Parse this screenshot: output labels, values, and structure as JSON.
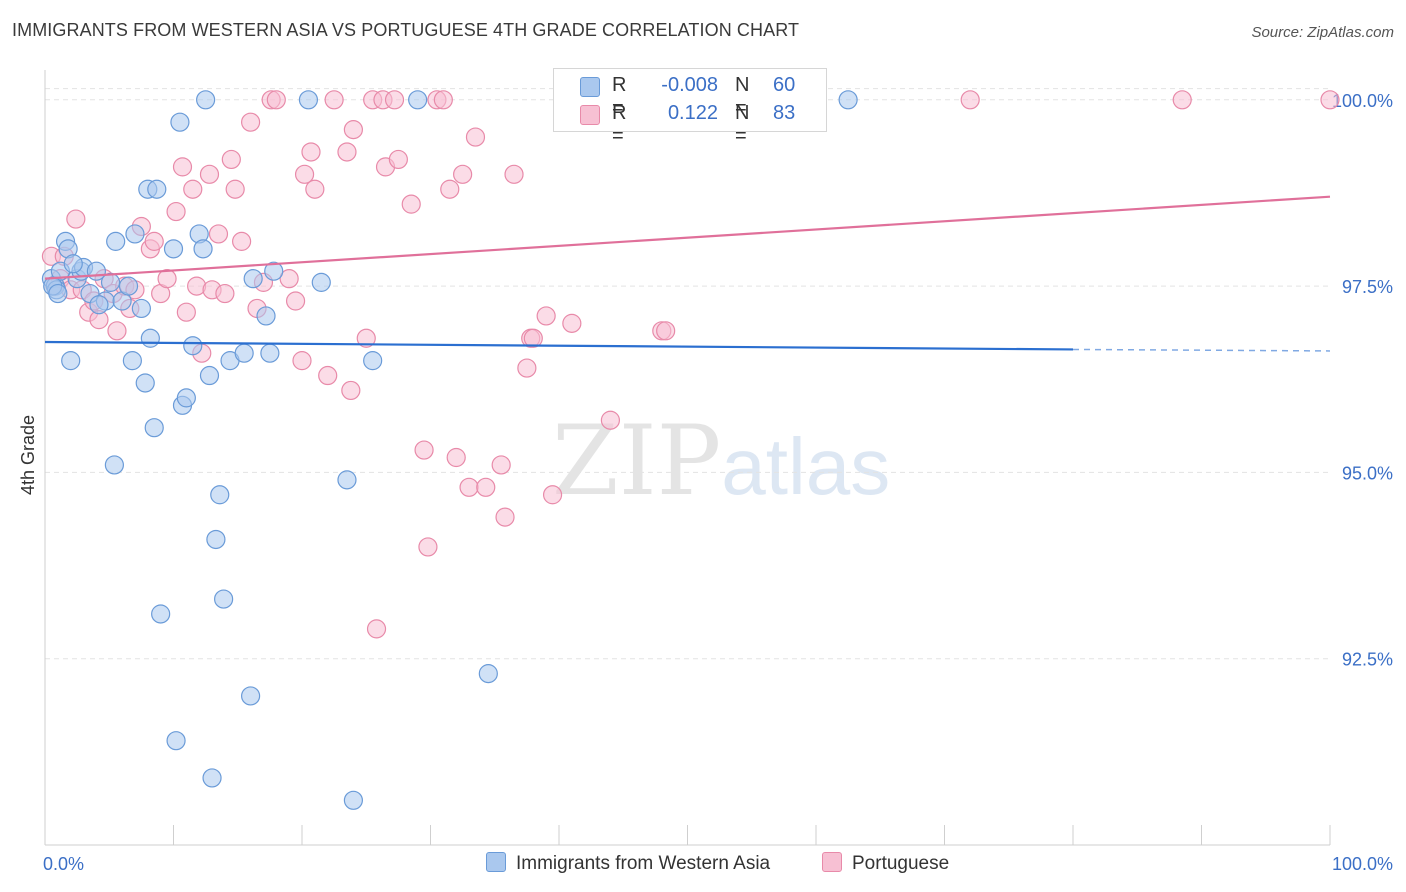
{
  "title": "IMMIGRANTS FROM WESTERN ASIA VS PORTUGUESE 4TH GRADE CORRELATION CHART",
  "source": "Source: ZipAtlas.com",
  "watermark": {
    "zip": "ZIP",
    "atlas": "atlas"
  },
  "legend_box": {
    "rows": [
      {
        "r_label": "R =",
        "r_value": "-0.008",
        "n_label": "N =",
        "n_value": "60"
      },
      {
        "r_label": "R =",
        "r_value": "0.122",
        "n_label": "N =",
        "n_value": "83"
      }
    ]
  },
  "bottom_legend": [
    "Immigrants from Western Asia",
    "Portuguese"
  ],
  "colors": {
    "blue_fill": "#aac8ee",
    "blue_stroke": "#6a9bd8",
    "blue_line": "#2b6fd0",
    "pink_fill": "#f7c0d3",
    "pink_stroke": "#e88aa9",
    "pink_line": "#e0709a",
    "tick_label": "#3b6fc6"
  },
  "chart_data": {
    "type": "scatter",
    "title": "IMMIGRANTS FROM WESTERN ASIA VS PORTUGUESE 4TH GRADE CORRELATION CHART",
    "xlabel": "",
    "ylabel": "4th Grade",
    "xlim": [
      0,
      100
    ],
    "ylim": [
      90.0,
      100.4
    ],
    "x_tick_labels": [
      "0.0%",
      "100.0%"
    ],
    "y_ticks": [
      100.0,
      97.5,
      95.0,
      92.5
    ],
    "y_tick_labels": [
      "100.0%",
      "97.5%",
      "95.0%",
      "92.5%"
    ],
    "grid": true,
    "series": [
      {
        "name": "Immigrants from Western Asia",
        "R": -0.008,
        "N": 60,
        "trend": {
          "x": [
            0,
            80
          ],
          "y": [
            96.75,
            96.65
          ],
          "dashed_to_x": 100,
          "dashed_to_y": 96.63
        },
        "points": [
          [
            0.5,
            97.6
          ],
          [
            0.8,
            97.5
          ],
          [
            0.9,
            97.45
          ],
          [
            1.2,
            97.7
          ],
          [
            1.6,
            98.1
          ],
          [
            1.8,
            98.0
          ],
          [
            2.0,
            96.5
          ],
          [
            2.5,
            97.6
          ],
          [
            2.8,
            97.7
          ],
          [
            3.0,
            97.75
          ],
          [
            3.5,
            97.4
          ],
          [
            4.0,
            97.7
          ],
          [
            4.7,
            97.3
          ],
          [
            5.1,
            97.55
          ],
          [
            5.4,
            95.1
          ],
          [
            5.5,
            98.1
          ],
          [
            6.0,
            97.3
          ],
          [
            6.5,
            97.5
          ],
          [
            6.8,
            96.5
          ],
          [
            7.0,
            98.2
          ],
          [
            7.5,
            97.2
          ],
          [
            7.8,
            96.2
          ],
          [
            8.0,
            98.8
          ],
          [
            8.2,
            96.8
          ],
          [
            8.5,
            95.6
          ],
          [
            8.7,
            98.8
          ],
          [
            9.0,
            93.1
          ],
          [
            10.0,
            98.0
          ],
          [
            10.2,
            91.4
          ],
          [
            10.5,
            99.7
          ],
          [
            10.7,
            95.9
          ],
          [
            11.0,
            96.0
          ],
          [
            11.5,
            96.7
          ],
          [
            12.0,
            98.2
          ],
          [
            12.3,
            98.0
          ],
          [
            12.5,
            100.0
          ],
          [
            12.8,
            96.3
          ],
          [
            13.0,
            90.9
          ],
          [
            13.3,
            94.1
          ],
          [
            13.6,
            94.7
          ],
          [
            13.9,
            93.3
          ],
          [
            14.4,
            96.5
          ],
          [
            15.5,
            96.6
          ],
          [
            16.0,
            92.0
          ],
          [
            16.2,
            97.6
          ],
          [
            17.2,
            97.1
          ],
          [
            17.5,
            96.6
          ],
          [
            17.8,
            97.7
          ],
          [
            20.5,
            100.0
          ],
          [
            21.5,
            97.55
          ],
          [
            23.5,
            94.9
          ],
          [
            24.0,
            90.6
          ],
          [
            25.5,
            96.5
          ],
          [
            29.0,
            100.0
          ],
          [
            34.5,
            92.3
          ],
          [
            62.5,
            100.0
          ],
          [
            0.6,
            97.5
          ],
          [
            1.0,
            97.4
          ],
          [
            2.2,
            97.8
          ],
          [
            4.2,
            97.25
          ]
        ]
      },
      {
        "name": "Portuguese",
        "R": 0.122,
        "N": 83,
        "trend": {
          "x": [
            0,
            100
          ],
          "y": [
            97.6,
            98.7
          ]
        },
        "points": [
          [
            0.5,
            97.9
          ],
          [
            0.8,
            97.5
          ],
          [
            1.2,
            97.6
          ],
          [
            1.5,
            97.9
          ],
          [
            2.0,
            97.45
          ],
          [
            2.4,
            98.4
          ],
          [
            2.9,
            97.45
          ],
          [
            3.4,
            97.15
          ],
          [
            3.8,
            97.3
          ],
          [
            4.2,
            97.05
          ],
          [
            4.6,
            97.6
          ],
          [
            5.3,
            97.4
          ],
          [
            5.6,
            96.9
          ],
          [
            6.2,
            97.5
          ],
          [
            6.6,
            97.2
          ],
          [
            7.0,
            97.45
          ],
          [
            7.5,
            98.3
          ],
          [
            8.2,
            98.0
          ],
          [
            8.5,
            98.1
          ],
          [
            9.0,
            97.4
          ],
          [
            9.5,
            97.6
          ],
          [
            10.2,
            98.5
          ],
          [
            10.7,
            99.1
          ],
          [
            11.0,
            97.15
          ],
          [
            11.5,
            98.8
          ],
          [
            11.8,
            97.5
          ],
          [
            12.2,
            96.6
          ],
          [
            12.8,
            99.0
          ],
          [
            13.0,
            97.45
          ],
          [
            13.5,
            98.2
          ],
          [
            14.0,
            97.4
          ],
          [
            14.5,
            99.2
          ],
          [
            14.8,
            98.8
          ],
          [
            15.3,
            98.1
          ],
          [
            16.0,
            99.7
          ],
          [
            16.5,
            97.2
          ],
          [
            17.0,
            97.55
          ],
          [
            17.6,
            100.0
          ],
          [
            18.0,
            100.0
          ],
          [
            19.0,
            97.6
          ],
          [
            19.5,
            97.3
          ],
          [
            20.0,
            96.5
          ],
          [
            20.2,
            99.0
          ],
          [
            20.7,
            99.3
          ],
          [
            21.0,
            98.8
          ],
          [
            22.0,
            96.3
          ],
          [
            22.5,
            100.0
          ],
          [
            23.5,
            99.3
          ],
          [
            23.8,
            96.1
          ],
          [
            24.0,
            99.6
          ],
          [
            25.0,
            96.8
          ],
          [
            25.5,
            100.0
          ],
          [
            25.8,
            92.9
          ],
          [
            26.3,
            100.0
          ],
          [
            26.5,
            99.1
          ],
          [
            27.2,
            100.0
          ],
          [
            27.5,
            99.2
          ],
          [
            28.5,
            98.6
          ],
          [
            29.5,
            95.3
          ],
          [
            29.8,
            94.0
          ],
          [
            30.5,
            100.0
          ],
          [
            31.0,
            100.0
          ],
          [
            31.5,
            98.8
          ],
          [
            32.0,
            95.2
          ],
          [
            32.5,
            99.0
          ],
          [
            33.0,
            94.8
          ],
          [
            33.5,
            99.5
          ],
          [
            34.3,
            94.8
          ],
          [
            35.5,
            95.1
          ],
          [
            35.8,
            94.4
          ],
          [
            36.5,
            99.0
          ],
          [
            37.5,
            96.4
          ],
          [
            37.8,
            96.8
          ],
          [
            38.0,
            96.8
          ],
          [
            39.0,
            97.1
          ],
          [
            39.5,
            94.7
          ],
          [
            41.0,
            97.0
          ],
          [
            44.0,
            95.7
          ],
          [
            48.0,
            96.9
          ],
          [
            48.3,
            96.9
          ],
          [
            88.5,
            100.0
          ],
          [
            100.0,
            100.0
          ],
          [
            72.0,
            100.0
          ]
        ]
      }
    ]
  }
}
